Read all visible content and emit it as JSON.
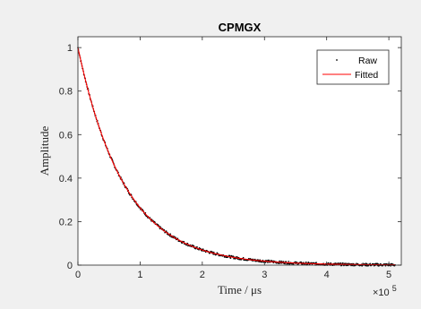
{
  "chart_data": {
    "type": "line",
    "title": "CPMGX",
    "xlabel": "Time / μs",
    "ylabel": "Amplitude",
    "x_exponent_label": "×10",
    "x_exponent_power": "5",
    "x_scale": 100000,
    "xlim": [
      0,
      520000
    ],
    "ylim": [
      0,
      1.05
    ],
    "xticks": [
      0,
      100000,
      200000,
      300000,
      400000,
      500000
    ],
    "xtick_labels": [
      "0",
      "1",
      "2",
      "3",
      "4",
      "5"
    ],
    "yticks": [
      0,
      0.2,
      0.4,
      0.6,
      0.8,
      1
    ],
    "ytick_labels": [
      "0",
      "0.2",
      "0.4",
      "0.6",
      "0.8",
      "1"
    ],
    "grid": false,
    "legend_position": "top-right",
    "decay_time_constant": 75000,
    "series": [
      {
        "name": "Raw",
        "style": "points",
        "color": "#000000",
        "x": [
          0,
          10000,
          20000,
          30000,
          40000,
          50000,
          60000,
          70000,
          80000,
          90000,
          100000,
          120000,
          140000,
          160000,
          180000,
          200000,
          220000,
          240000,
          260000,
          280000,
          300000,
          330000,
          360000,
          390000,
          420000,
          450000,
          480000,
          510000
        ],
        "y": [
          1.0,
          0.875,
          0.766,
          0.67,
          0.586,
          0.513,
          0.449,
          0.393,
          0.344,
          0.301,
          0.264,
          0.202,
          0.155,
          0.119,
          0.091,
          0.07,
          0.054,
          0.041,
          0.031,
          0.024,
          0.018,
          0.012,
          0.008,
          0.006,
          0.004,
          0.003,
          0.002,
          0.001
        ]
      },
      {
        "name": "Fitted",
        "style": "line",
        "color": "#ff0000",
        "x": [
          0,
          10000,
          20000,
          30000,
          40000,
          50000,
          60000,
          70000,
          80000,
          90000,
          100000,
          120000,
          140000,
          160000,
          180000,
          200000,
          220000,
          240000,
          260000,
          280000,
          300000,
          330000,
          360000,
          390000,
          420000,
          450000,
          480000,
          510000
        ],
        "y": [
          1.0,
          0.875,
          0.766,
          0.67,
          0.586,
          0.513,
          0.449,
          0.393,
          0.344,
          0.301,
          0.264,
          0.202,
          0.155,
          0.119,
          0.091,
          0.07,
          0.054,
          0.041,
          0.031,
          0.024,
          0.018,
          0.012,
          0.008,
          0.006,
          0.004,
          0.003,
          0.002,
          0.001
        ]
      }
    ]
  }
}
